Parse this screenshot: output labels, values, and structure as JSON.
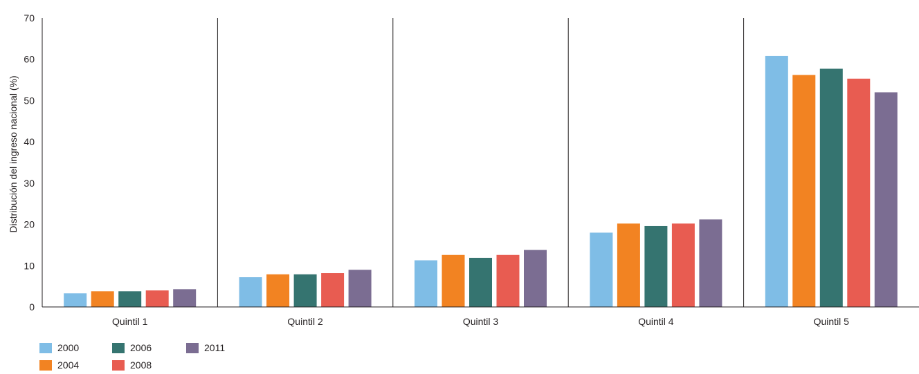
{
  "chart_data": {
    "type": "bar",
    "ylabel": "Distribución del ingreso nacional (%)",
    "ylim": [
      0,
      70
    ],
    "yticks": [
      0,
      10,
      20,
      30,
      40,
      50,
      60,
      70
    ],
    "categories": [
      "Quintil 1",
      "Quintil 2",
      "Quintil 3",
      "Quintil 4",
      "Quintil 5"
    ],
    "series": [
      {
        "name": "2000",
        "color": "#7fbde6",
        "values": [
          3.3,
          7.2,
          11.3,
          18.0,
          60.8
        ]
      },
      {
        "name": "2004",
        "color": "#f28322",
        "values": [
          3.8,
          7.9,
          12.6,
          20.2,
          56.2
        ]
      },
      {
        "name": "2006",
        "color": "#357470",
        "values": [
          3.8,
          7.9,
          11.9,
          19.6,
          57.7
        ]
      },
      {
        "name": "2008",
        "color": "#e85c51",
        "values": [
          4.0,
          8.2,
          12.6,
          20.2,
          55.3
        ]
      },
      {
        "name": "2011",
        "color": "#7b6d92",
        "values": [
          4.3,
          9.0,
          13.8,
          21.2,
          52.0
        ]
      }
    ],
    "grid": false,
    "legend_position": "bottom-left"
  }
}
